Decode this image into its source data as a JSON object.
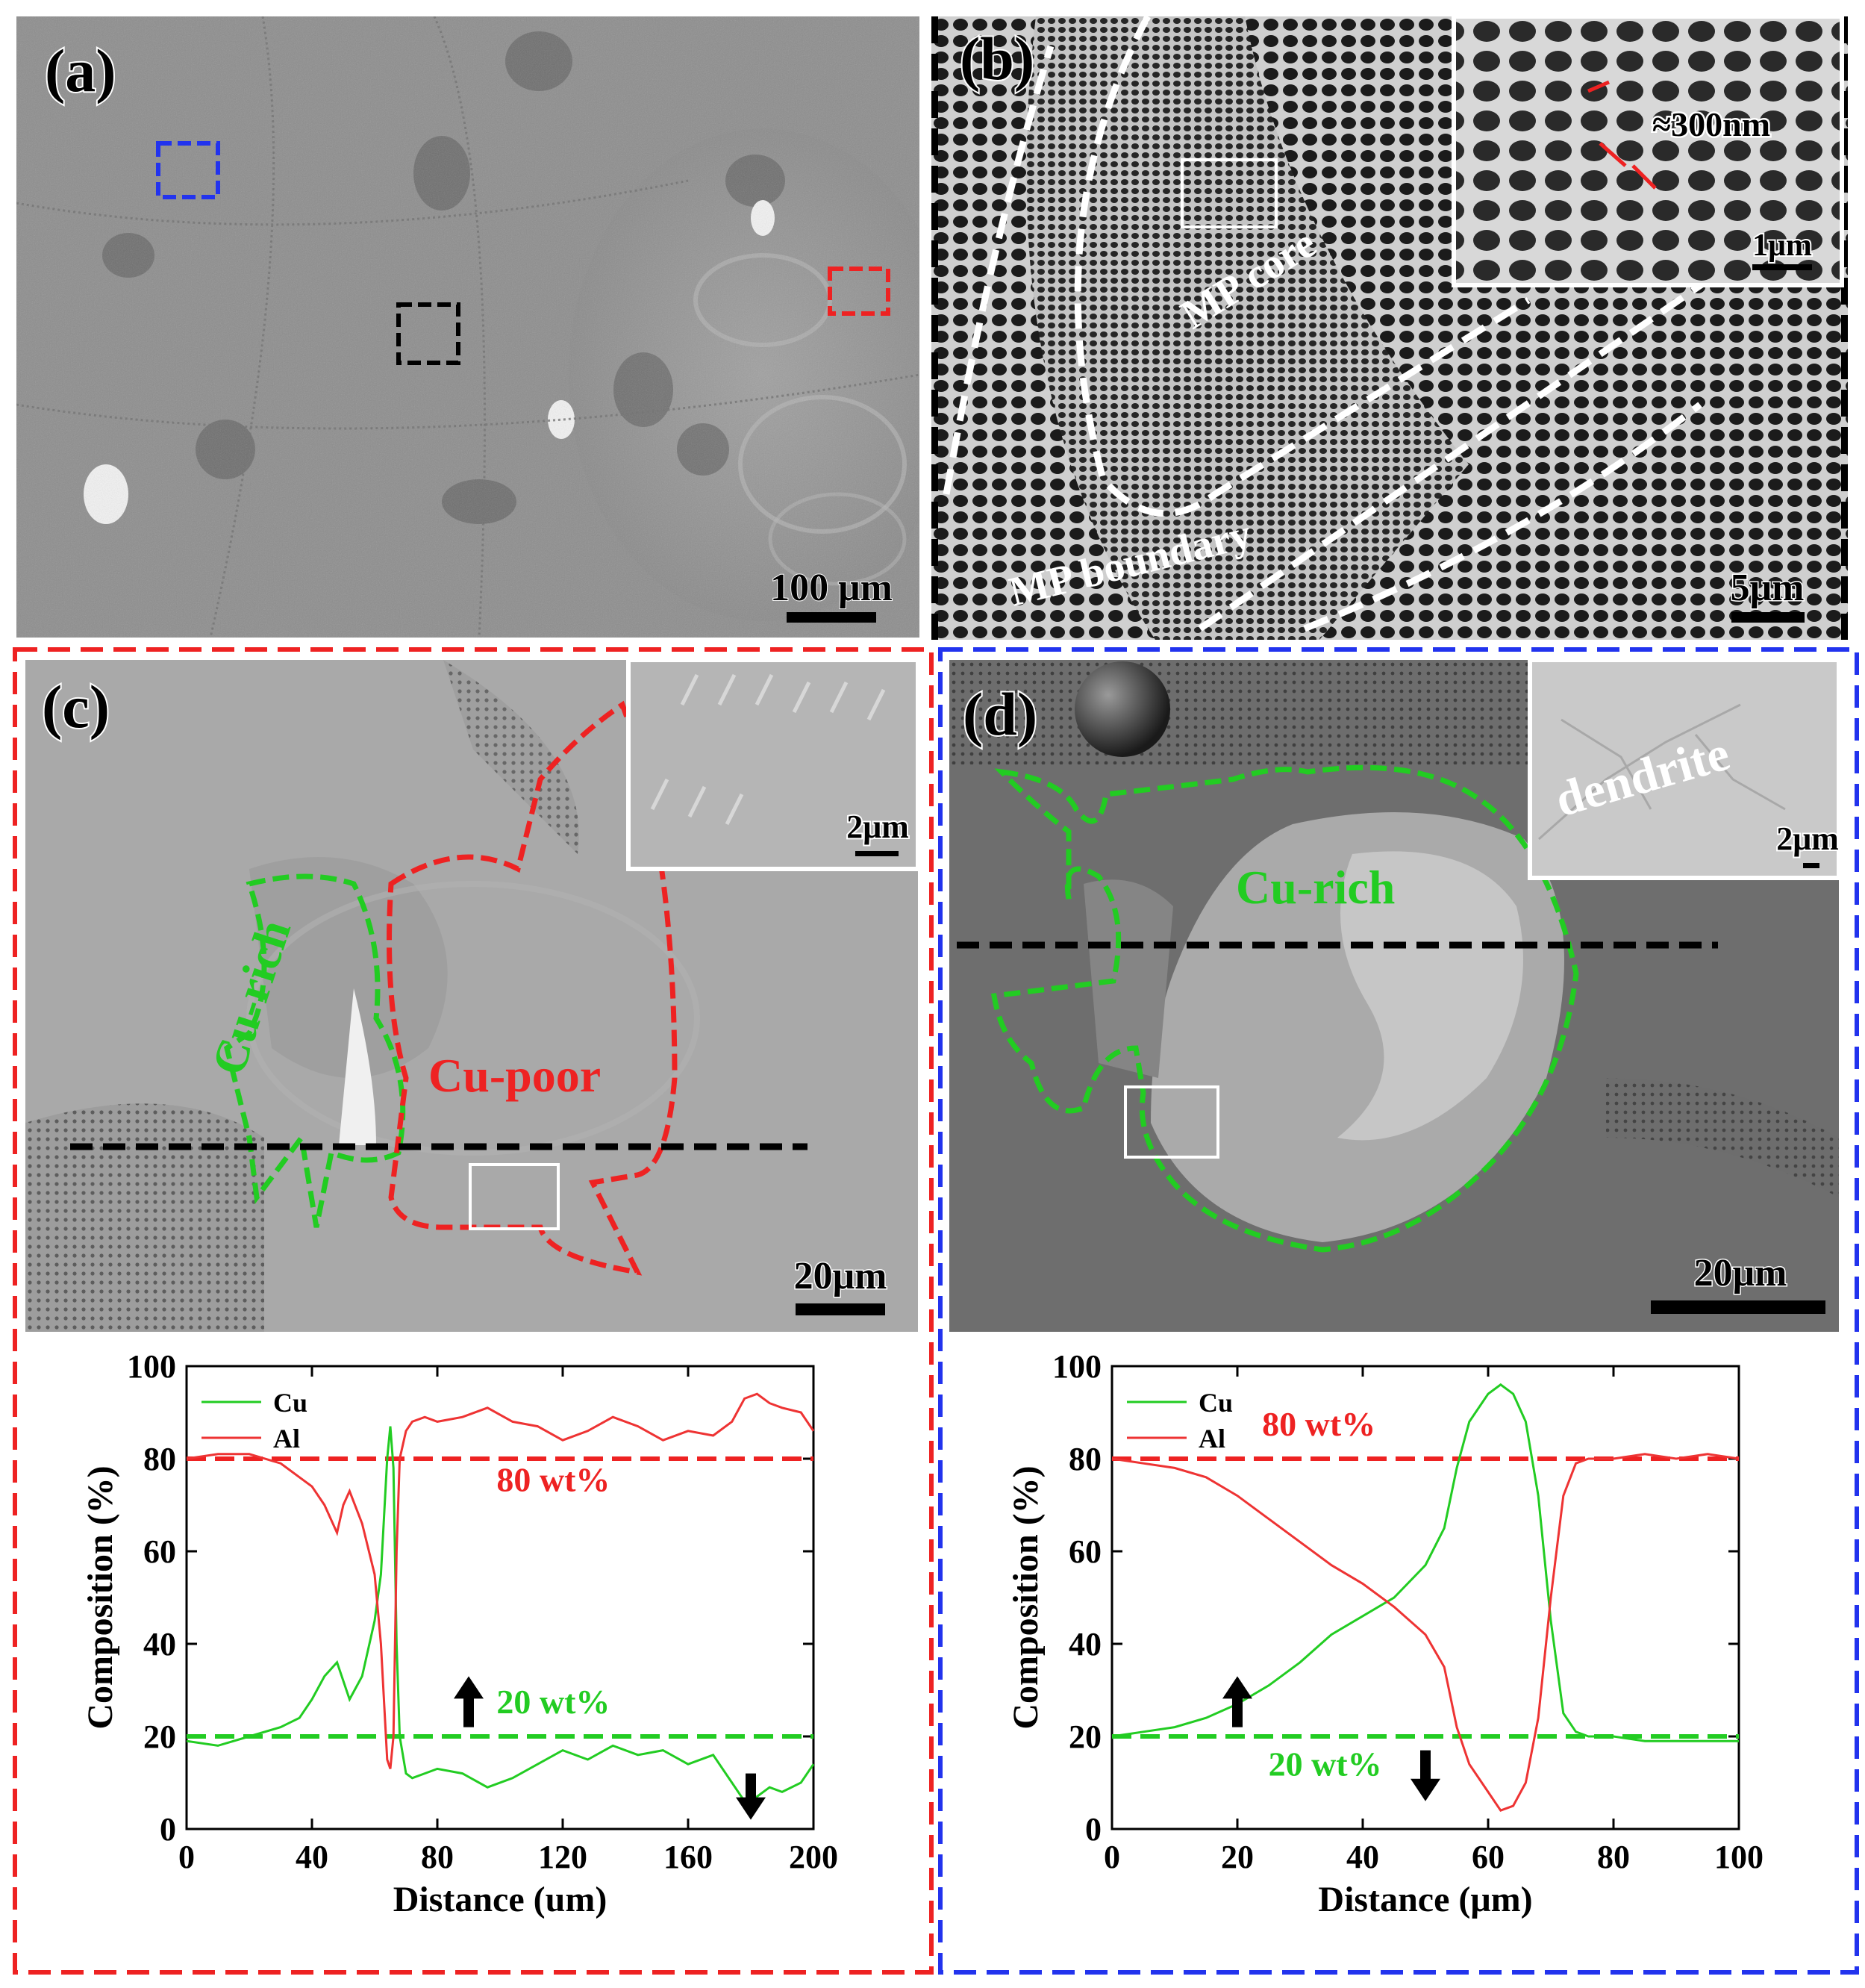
{
  "figure": {
    "panel_a": {
      "label": "(a)",
      "scalebar": "100 μm"
    },
    "panel_b": {
      "label": "(b)",
      "scalebar": "5μm",
      "inset_scalebar": "1μm",
      "inset_annotation": "≈300nm",
      "region_core": "MP core",
      "region_boundary": "MP boundary"
    },
    "panel_c": {
      "label": "(c)",
      "scalebar": "20μm",
      "inset_scalebar": "2μm",
      "region_rich": "Cu-rich",
      "region_poor": "Cu-poor"
    },
    "panel_d": {
      "label": "(d)",
      "scalebar": "20μm",
      "inset_scalebar": "2μm",
      "inset_annotation": "dendrite",
      "region_rich": "Cu-rich"
    },
    "colors": {
      "cu": "#22cc22",
      "al": "#ee3333",
      "frame_c": "#ee2222",
      "frame_d": "#2233ee"
    }
  },
  "chart_data": [
    {
      "type": "line",
      "xlabel": "Distance (um)",
      "ylabel": "Composition (%)",
      "xlim": [
        0,
        200
      ],
      "ylim": [
        0,
        100
      ],
      "xticks": [
        "0",
        "40",
        "80",
        "120",
        "160",
        "200"
      ],
      "yticks": [
        "0",
        "20",
        "40",
        "60",
        "80",
        "100"
      ],
      "legend": [
        "Cu",
        "Al"
      ],
      "reference_lines": [
        {
          "label": "80 wt%",
          "y": 80,
          "color": "#ee2222"
        },
        {
          "label": "20 wt%",
          "y": 20,
          "color": "#22cc22"
        }
      ],
      "series": [
        {
          "name": "Cu",
          "color": "#22cc22",
          "x": [
            0,
            10,
            20,
            30,
            36,
            40,
            44,
            48,
            52,
            56,
            60,
            62,
            64,
            65,
            66,
            67,
            68,
            70,
            72,
            76,
            80,
            88,
            96,
            104,
            112,
            120,
            128,
            136,
            144,
            152,
            160,
            168,
            174,
            178,
            182,
            186,
            190,
            196,
            200
          ],
          "y": [
            19,
            18,
            20,
            22,
            24,
            28,
            33,
            36,
            28,
            33,
            45,
            55,
            80,
            87,
            78,
            40,
            20,
            12,
            11,
            12,
            13,
            12,
            9,
            11,
            14,
            17,
            15,
            18,
            16,
            17,
            14,
            16,
            10,
            6,
            7,
            9,
            8,
            10,
            14
          ]
        },
        {
          "name": "Al",
          "color": "#ee3333",
          "x": [
            0,
            10,
            20,
            30,
            36,
            40,
            44,
            48,
            50,
            52,
            56,
            60,
            62,
            64,
            65,
            66,
            67,
            68,
            70,
            72,
            76,
            80,
            88,
            96,
            104,
            112,
            120,
            128,
            136,
            144,
            152,
            160,
            168,
            174,
            178,
            182,
            186,
            190,
            196,
            200
          ],
          "y": [
            80,
            81,
            81,
            79,
            76,
            74,
            70,
            64,
            70,
            73,
            66,
            55,
            40,
            15,
            13,
            20,
            60,
            80,
            86,
            88,
            89,
            88,
            89,
            91,
            88,
            87,
            84,
            86,
            89,
            87,
            84,
            86,
            85,
            88,
            93,
            94,
            92,
            91,
            90,
            86
          ]
        }
      ]
    },
    {
      "type": "line",
      "xlabel": "Distance (μm)",
      "ylabel": "Composition (%)",
      "xlim": [
        0,
        100
      ],
      "ylim": [
        0,
        100
      ],
      "xticks": [
        "0",
        "20",
        "40",
        "60",
        "80",
        "100"
      ],
      "yticks": [
        "0",
        "20",
        "40",
        "60",
        "80",
        "100"
      ],
      "legend": [
        "Cu",
        "Al"
      ],
      "reference_lines": [
        {
          "label": "80 wt%",
          "y": 80,
          "color": "#ee2222"
        },
        {
          "label": "20 wt%",
          "y": 20,
          "color": "#22cc22"
        }
      ],
      "series": [
        {
          "name": "Cu",
          "color": "#22cc22",
          "x": [
            0,
            5,
            10,
            15,
            20,
            25,
            30,
            35,
            40,
            45,
            50,
            53,
            55,
            57,
            60,
            62,
            64,
            66,
            68,
            70,
            72,
            74,
            76,
            80,
            85,
            90,
            95,
            100
          ],
          "y": [
            20,
            21,
            22,
            24,
            27,
            31,
            36,
            42,
            46,
            50,
            57,
            65,
            78,
            88,
            94,
            96,
            94,
            88,
            72,
            45,
            25,
            21,
            20,
            20,
            19,
            19,
            19,
            19
          ]
        },
        {
          "name": "Al",
          "color": "#ee3333",
          "x": [
            0,
            5,
            10,
            15,
            20,
            25,
            30,
            35,
            40,
            45,
            50,
            53,
            55,
            57,
            60,
            62,
            64,
            66,
            68,
            70,
            72,
            74,
            76,
            80,
            85,
            90,
            95,
            100
          ],
          "y": [
            80,
            79,
            78,
            76,
            72,
            67,
            62,
            57,
            53,
            48,
            42,
            35,
            22,
            14,
            8,
            4,
            5,
            10,
            24,
            50,
            72,
            79,
            80,
            80,
            81,
            80,
            81,
            80
          ]
        }
      ]
    }
  ]
}
